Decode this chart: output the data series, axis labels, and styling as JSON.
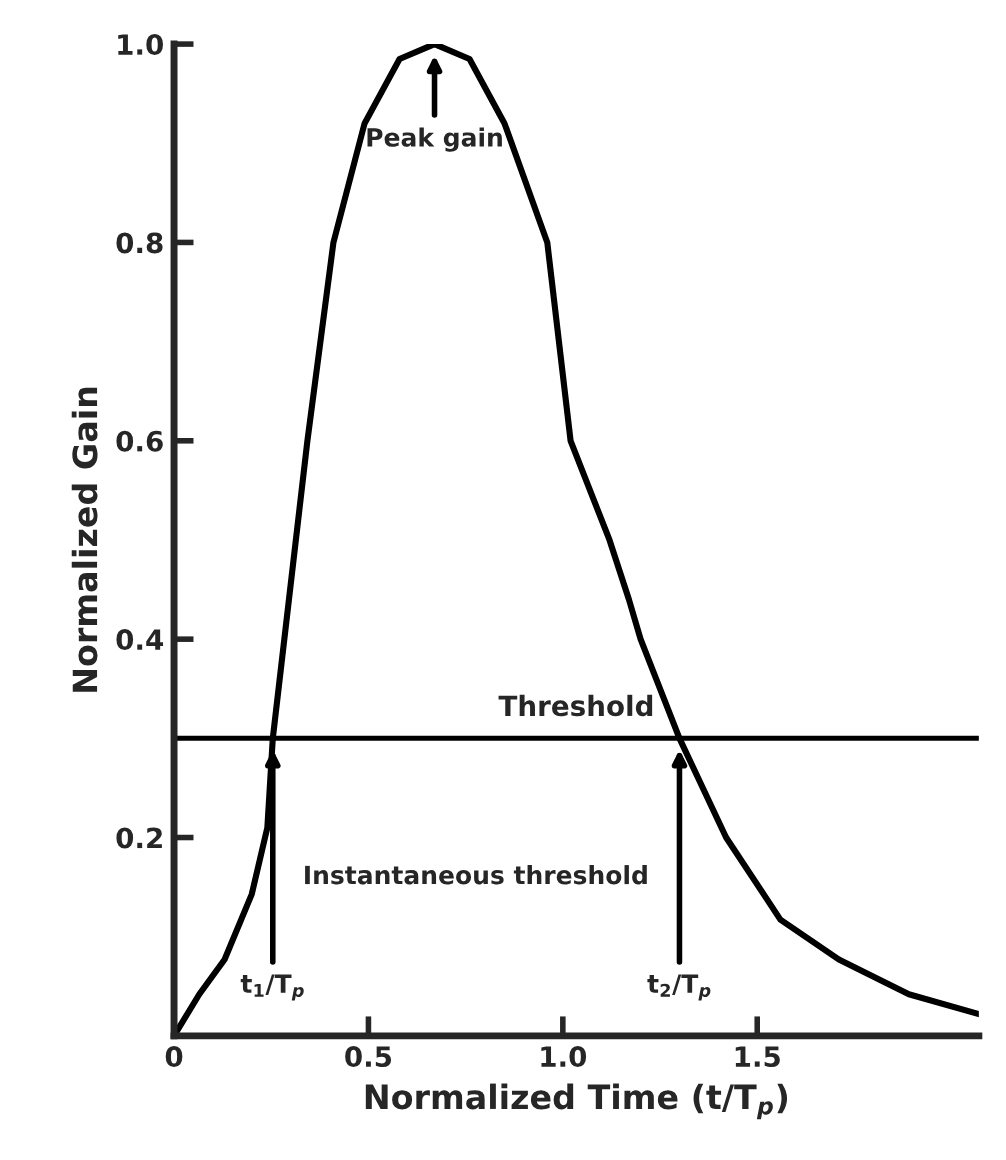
{
  "chart_data": {
    "type": "line",
    "xlabel": "Normalized Time (t/T$_{p}$)",
    "ylabel": "Normalized Gain",
    "x": [
      0,
      0.065,
      0.13,
      0.2,
      0.24,
      0.254,
      0.343,
      0.41,
      0.49,
      0.58,
      0.67,
      0.76,
      0.85,
      0.96,
      1.02,
      1.12,
      1.17,
      1.2,
      1.3,
      1.42,
      1.56,
      1.71,
      1.89,
      2.07
    ],
    "series": [
      {
        "color": "#000000",
        "values": [
          0,
          0.042,
          0.077,
          0.143,
          0.21,
          0.3,
          0.6,
          0.8,
          0.92,
          0.985,
          1.0,
          0.985,
          0.92,
          0.8,
          0.6,
          0.5,
          0.44,
          0.4,
          0.3,
          0.2,
          0.117,
          0.077,
          0.042,
          0.022
        ]
      }
    ],
    "xlim": [
      0,
      2.07
    ],
    "ylim": [
      0,
      1.0
    ],
    "xticks": [
      {
        "value": 0,
        "label": "0"
      },
      0.5,
      {
        "value": 1.0,
        "label": "1.0"
      },
      1.5
    ],
    "yticks": [
      0.2,
      0.4,
      0.6,
      0.8,
      {
        "value": 1.0,
        "label": "1.0"
      }
    ],
    "ref_lines": [
      {
        "axis": "y",
        "value": 0.3,
        "label": "Threshold",
        "color": "#000000"
      }
    ],
    "annotations": [
      {
        "text": "Peak gain",
        "x": 0.67,
        "y": 1.0
      },
      {
        "text": "t$_{1}$/T$_{p}$",
        "x": 0.254,
        "y": 0.3
      },
      {
        "text": "t$_{2}$/T$_{p}$",
        "x": 1.3,
        "y": 0.3
      },
      "Instantaneous threshold"
    ],
    "grid": false,
    "legend": false,
    "marker": "none",
    "line_style": "solid"
  }
}
